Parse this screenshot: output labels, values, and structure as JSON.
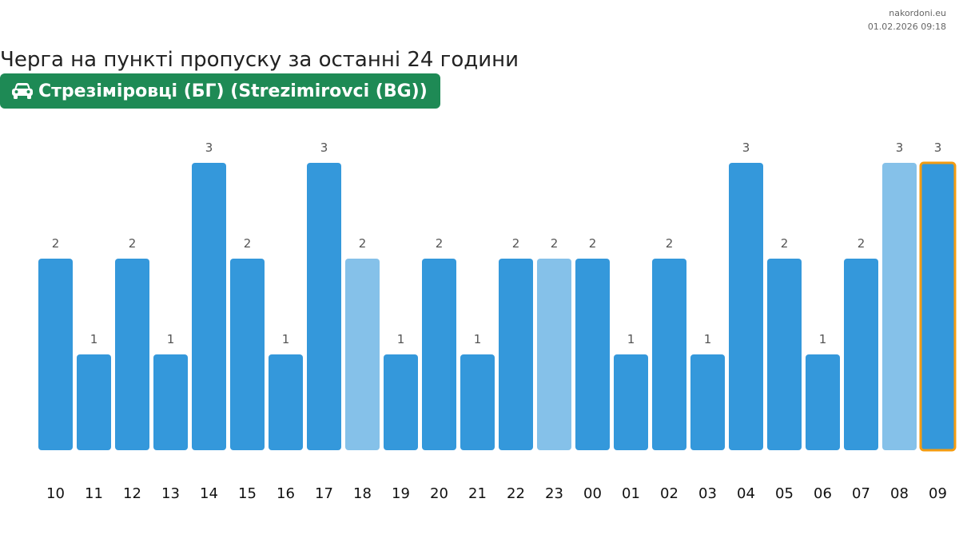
{
  "site": {
    "name": "nakordoni.eu",
    "timestamp": "01.02.2026 09:18"
  },
  "title": "Черга на пункті пропуску за останні 24 години",
  "checkpoint": {
    "icon": "car-icon",
    "label": "Стрезіміровці (БГ) (Strezimirovci (BG))",
    "color": "#1e8a55"
  },
  "colors": {
    "bar": "#3498db",
    "bar_light": "#85c1e9",
    "highlight_border": "#f39c12"
  },
  "chart_data": {
    "type": "bar",
    "categories": [
      "10",
      "11",
      "12",
      "13",
      "14",
      "15",
      "16",
      "17",
      "18",
      "19",
      "20",
      "21",
      "22",
      "23",
      "00",
      "01",
      "02",
      "03",
      "04",
      "05",
      "06",
      "07",
      "08",
      "09"
    ],
    "values": [
      2,
      1,
      2,
      1,
      3,
      2,
      1,
      3,
      2,
      1,
      2,
      1,
      2,
      2,
      2,
      1,
      2,
      1,
      3,
      2,
      1,
      2,
      3,
      3
    ],
    "light_bars": [
      8,
      13,
      22
    ],
    "highlighted_bar": 23,
    "ylim": [
      0,
      3
    ],
    "grid": false,
    "title": "",
    "xlabel": "",
    "ylabel": ""
  }
}
